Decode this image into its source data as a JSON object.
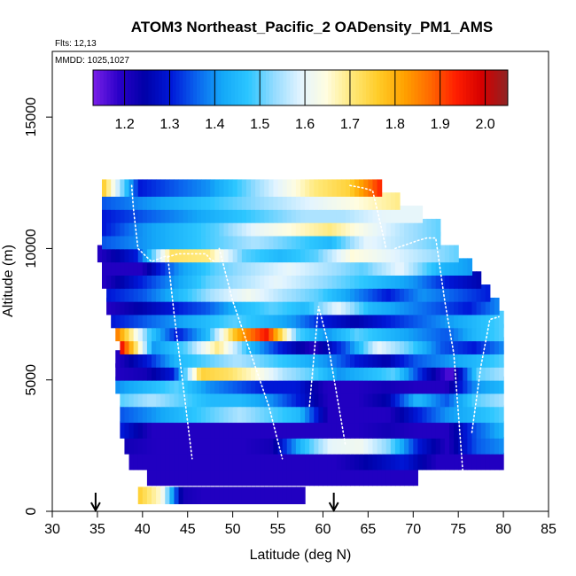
{
  "chart_data": {
    "type": "heatmap",
    "title": "ATOM3 Northeast_Pacific_2 OADensity_PM1_AMS",
    "annotations": [
      "Flts: 12,13",
      "MMDD: 1025,1027"
    ],
    "xlabel": "Latitude (deg N)",
    "ylabel": "Altitude (m)",
    "xlim": [
      30,
      85
    ],
    "ylim": [
      0,
      17500
    ],
    "x_ticks": [
      30,
      35,
      40,
      45,
      50,
      55,
      60,
      65,
      70,
      75,
      80,
      85
    ],
    "y_ticks": [
      0,
      5000,
      10000,
      15000
    ],
    "grid": false,
    "colorbar": {
      "placement": "top-inside",
      "range": [
        1.13,
        2.05
      ],
      "ticks": [
        1.2,
        1.3,
        1.4,
        1.5,
        1.6,
        1.7,
        1.8,
        1.9,
        2.0
      ],
      "colors": [
        "#7a1fe8",
        "#2a00c8",
        "#0000a8",
        "#0018d8",
        "#0a64ee",
        "#14a8f8",
        "#2cc6ff",
        "#96dcff",
        "#e2f4ff",
        "#fffde0",
        "#ffe878",
        "#ffcc28",
        "#ffa200",
        "#ff6a00",
        "#ff1e00",
        "#d50000",
        "#8e2424"
      ]
    },
    "flight_markers_lat": [
      34.8,
      61.2
    ],
    "layers": [
      {
        "alt": 600,
        "lat_start": 39.5,
        "lat_end": 58.0,
        "values": [
          1.75,
          1.65,
          1.22,
          1.2,
          1.2,
          1.2,
          1.2,
          1.2,
          1.2
        ]
      },
      {
        "alt": 1300,
        "lat_start": 40.5,
        "lat_end": 70.5,
        "values": [
          1.2,
          1.2,
          1.2,
          1.2,
          1.2,
          1.2,
          1.2,
          1.2,
          1.2,
          1.2
        ]
      },
      {
        "alt": 1900,
        "lat_start": 38.5,
        "lat_end": 80.0,
        "values": [
          1.2,
          1.2,
          1.2,
          1.2,
          1.2,
          1.2,
          1.2,
          1.25,
          1.3,
          1.2,
          1.2,
          1.2
        ]
      },
      {
        "alt": 2500,
        "lat_start": 38.0,
        "lat_end": 80.0,
        "values": [
          1.22,
          1.2,
          1.2,
          1.2,
          1.2,
          1.22,
          1.45,
          1.6,
          1.62,
          1.52,
          1.3,
          1.2,
          1.35,
          1.4
        ]
      },
      {
        "alt": 3100,
        "lat_start": 37.5,
        "lat_end": 80.0,
        "values": [
          1.3,
          1.2,
          1.2,
          1.2,
          1.2,
          1.2,
          1.2,
          1.2,
          1.2,
          1.22,
          1.2,
          1.2,
          1.35,
          1.45
        ]
      },
      {
        "alt": 3700,
        "lat_start": 37.5,
        "lat_end": 80.0,
        "values": [
          1.35,
          1.4,
          1.45,
          1.5,
          1.55,
          1.5,
          1.45,
          1.2,
          1.2,
          1.2,
          1.3,
          1.4,
          1.45,
          1.5
        ]
      },
      {
        "alt": 4300,
        "lat_start": 37.5,
        "lat_end": 80.0,
        "values": [
          1.5,
          1.55,
          1.5,
          1.45,
          1.45,
          1.4,
          1.3,
          1.2,
          1.2,
          1.25,
          1.45,
          1.35,
          1.5,
          1.55
        ]
      },
      {
        "alt": 4800,
        "lat_start": 37.0,
        "lat_end": 80.0,
        "values": [
          1.4,
          1.45,
          1.5,
          1.4,
          1.35,
          1.3,
          1.3,
          1.2,
          1.2,
          1.22,
          1.2,
          1.2,
          1.4,
          1.45
        ]
      },
      {
        "alt": 5300,
        "lat_start": 37.0,
        "lat_end": 80.0,
        "values": [
          1.2,
          1.22,
          1.3,
          1.75,
          1.72,
          1.65,
          1.55,
          1.5,
          1.4,
          1.45,
          1.5,
          1.3,
          1.15,
          1.5,
          1.55
        ]
      },
      {
        "alt": 5800,
        "lat_start": 37.0,
        "lat_end": 80.0,
        "values": [
          1.2,
          1.3,
          1.45,
          1.5,
          1.55,
          1.5,
          1.45,
          1.4,
          1.3,
          1.25,
          1.35,
          1.4,
          1.45,
          1.5
        ]
      },
      {
        "alt": 6300,
        "lat_start": 37.5,
        "lat_end": 80.0,
        "values": [
          1.95,
          1.4,
          1.5,
          1.7,
          1.45,
          1.3,
          1.2,
          1.35,
          1.6,
          1.5,
          1.35,
          1.3,
          1.4
        ]
      },
      {
        "alt": 6800,
        "lat_start": 37.0,
        "lat_end": 80.0,
        "values": [
          1.85,
          1.5,
          1.3,
          1.45,
          1.8,
          1.95,
          1.5,
          1.4,
          1.5,
          1.45,
          1.4,
          1.35,
          1.45,
          1.5
        ]
      },
      {
        "alt": 7300,
        "lat_start": 36.5,
        "lat_end": 80.0,
        "values": [
          1.3,
          1.35,
          1.4,
          1.45,
          1.5,
          1.45,
          1.4,
          1.3,
          1.25,
          1.3,
          1.35,
          1.4,
          1.45,
          1.5
        ]
      },
      {
        "alt": 7800,
        "lat_start": 36.0,
        "lat_end": 79.5,
        "values": [
          1.2,
          1.25,
          1.3,
          1.35,
          1.45,
          1.5,
          1.45,
          1.6,
          1.45,
          1.4,
          1.35,
          1.3,
          1.4
        ]
      },
      {
        "alt": 8300,
        "lat_start": 36.0,
        "lat_end": 78.5,
        "values": [
          1.3,
          1.35,
          1.45,
          1.55,
          1.62,
          1.55,
          1.5,
          1.4,
          1.3,
          1.4,
          1.35,
          1.3
        ]
      },
      {
        "alt": 8800,
        "lat_start": 35.5,
        "lat_end": 77.5,
        "values": [
          1.2,
          1.3,
          1.4,
          1.5,
          1.55,
          1.6,
          1.55,
          1.5,
          1.45,
          1.4,
          1.3,
          1.25
        ]
      },
      {
        "alt": 9300,
        "lat_start": 35.5,
        "lat_end": 76.5,
        "values": [
          1.2,
          1.2,
          1.4,
          1.5,
          1.55,
          1.6,
          1.55,
          1.5,
          1.6,
          1.45,
          1.4
        ]
      },
      {
        "alt": 9800,
        "lat_start": 35.0,
        "lat_end": 75.0,
        "values": [
          1.2,
          1.3,
          1.72,
          1.7,
          1.5,
          1.45,
          1.5,
          1.65,
          1.6,
          1.55,
          1.5
        ]
      },
      {
        "alt": 10300,
        "lat_start": 35.5,
        "lat_end": 73.0,
        "values": [
          1.35,
          1.4,
          1.45,
          1.5,
          1.55,
          1.5,
          1.45,
          1.6,
          1.55,
          1.5
        ]
      },
      {
        "alt": 10800,
        "lat_start": 35.5,
        "lat_end": 73.0,
        "values": [
          1.3,
          1.4,
          1.45,
          1.5,
          1.6,
          1.65,
          1.7,
          1.62,
          1.55,
          1.5
        ]
      },
      {
        "alt": 11300,
        "lat_start": 35.5,
        "lat_end": 71.0,
        "values": [
          1.3,
          1.35,
          1.4,
          1.45,
          1.5,
          1.55,
          1.55,
          1.6,
          1.6
        ]
      },
      {
        "alt": 11800,
        "lat_start": 35.5,
        "lat_end": 68.5,
        "values": [
          1.35,
          1.4,
          1.45,
          1.5,
          1.55,
          1.6,
          1.65,
          1.7
        ]
      },
      {
        "alt": 12300,
        "lat_start": 35.5,
        "lat_end": 66.5,
        "values": [
          1.75,
          1.3,
          1.35,
          1.4,
          1.5,
          1.6,
          1.7,
          1.75,
          1.95
        ]
      }
    ],
    "flight_tracks": [
      {
        "lat": [
          38.8,
          39.0,
          39.5,
          41.0,
          42.5,
          43.0,
          44.0,
          45.0,
          46.0,
          47.0,
          47.5,
          48.0
        ],
        "alt": [
          12400,
          11500,
          10000,
          9500,
          9700,
          9700,
          9800,
          9800,
          9800,
          9800,
          9600,
          9500
        ]
      },
      {
        "lat": [
          42.8,
          43.5,
          44.5,
          45.5
        ],
        "alt": [
          9700,
          7500,
          4800,
          2000
        ]
      },
      {
        "lat": [
          48.5,
          50.0,
          52.0,
          54.0,
          55.5
        ],
        "alt": [
          10000,
          8000,
          6000,
          4000,
          2000
        ]
      },
      {
        "lat": [
          58.5,
          59.5,
          60.5,
          61.5,
          62.5
        ],
        "alt": [
          4000,
          7800,
          6500,
          4500,
          2500
        ]
      },
      {
        "lat": [
          63.0,
          64.5,
          65.5,
          66.0,
          67.0
        ],
        "alt": [
          12400,
          12300,
          12200,
          11500,
          10000
        ]
      },
      {
        "lat": [
          68.0,
          70.5,
          71.5,
          72.5,
          73.5,
          74.5,
          75.5
        ],
        "alt": [
          10000,
          10300,
          10400,
          10400,
          8000,
          6000,
          1500
        ]
      },
      {
        "lat": [
          76.5,
          77.5,
          78.5,
          79.5
        ],
        "alt": [
          3000,
          5500,
          7300,
          7400
        ]
      }
    ]
  }
}
